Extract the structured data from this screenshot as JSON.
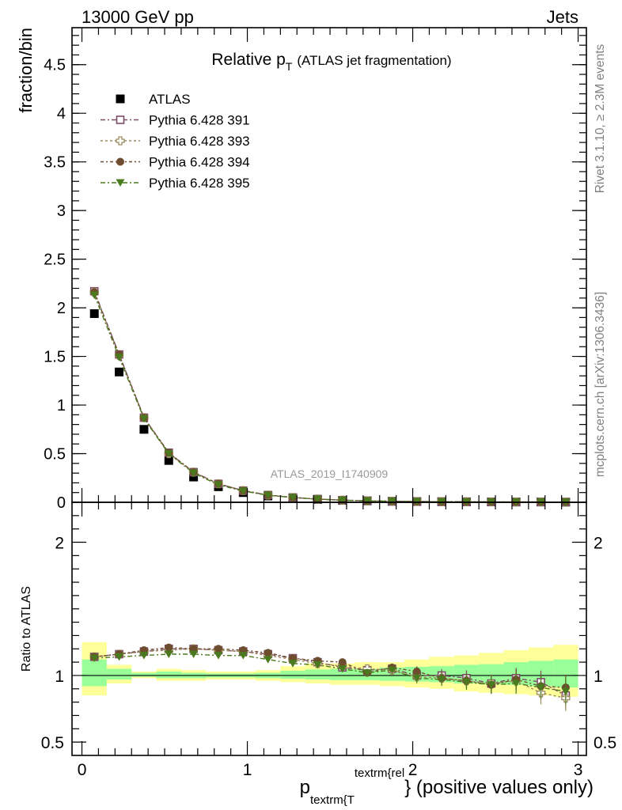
{
  "header": {
    "left_label": "13000 GeV pp",
    "right_label": "Jets",
    "side_label_top": "Rivet 3.1.10, ≥ 2.3M events",
    "side_label_bottom": "mcplots.cern.ch [arXiv:1306.3436]",
    "watermark": "ATLAS_2019_I1740909"
  },
  "chart_data": [
    {
      "type": "scatter",
      "panel": "main",
      "title_main": "Relative p",
      "title_sub": "T",
      "title_rest": "(ATLAS jet fragmentation)",
      "ylabel": "fraction/bin",
      "xlim": [
        -0.06,
        3.05
      ],
      "ylim": [
        0,
        4.88
      ],
      "yticks": [
        "0",
        "0.5",
        "1",
        "1.5",
        "2",
        "2.5",
        "3",
        "3.5",
        "4",
        "4.5"
      ],
      "x": [
        0.075,
        0.225,
        0.375,
        0.525,
        0.675,
        0.825,
        0.975,
        1.125,
        1.275,
        1.425,
        1.575,
        1.725,
        1.875,
        2.025,
        2.175,
        2.325,
        2.475,
        2.625,
        2.775,
        2.925
      ],
      "series": [
        {
          "name": "ATLAS",
          "color": "#000000",
          "marker": "square-filled",
          "values": [
            1.94,
            1.34,
            0.75,
            0.43,
            0.26,
            0.16,
            0.1,
            0.065,
            0.045,
            0.03,
            0.02,
            0.015,
            0.01,
            0.008,
            0.006,
            0.005,
            0.004,
            0.003,
            0.003,
            0.002
          ]
        },
        {
          "name": "Pythia 6.428 391",
          "color": "#7b4b68",
          "marker": "square-open",
          "dash": "6,3,2,3",
          "values": [
            2.17,
            1.52,
            0.87,
            0.51,
            0.31,
            0.19,
            0.12,
            0.075,
            0.05,
            0.033,
            0.022,
            0.016,
            0.011,
            0.009,
            0.006,
            0.005,
            0.004,
            0.003,
            0.003,
            0.002
          ]
        },
        {
          "name": "Pythia 6.428 393",
          "color": "#9c8a5c",
          "marker": "cross-open",
          "dash": "3,3",
          "values": [
            2.16,
            1.51,
            0.87,
            0.5,
            0.31,
            0.19,
            0.12,
            0.074,
            0.049,
            0.033,
            0.022,
            0.015,
            0.011,
            0.008,
            0.006,
            0.005,
            0.004,
            0.003,
            0.003,
            0.002
          ]
        },
        {
          "name": "Pythia 6.428 394",
          "color": "#6e4c2e",
          "marker": "circle-filled",
          "dash": "4,3,2,3",
          "values": [
            2.16,
            1.52,
            0.87,
            0.51,
            0.31,
            0.19,
            0.12,
            0.075,
            0.05,
            0.033,
            0.022,
            0.015,
            0.011,
            0.008,
            0.006,
            0.005,
            0.004,
            0.003,
            0.003,
            0.002
          ]
        },
        {
          "name": "Pythia 6.428 395",
          "color": "#4a7a1e",
          "marker": "triangle-down-filled",
          "dash": "6,3,2,3",
          "values": [
            2.13,
            1.49,
            0.86,
            0.5,
            0.3,
            0.18,
            0.115,
            0.072,
            0.048,
            0.032,
            0.021,
            0.015,
            0.011,
            0.008,
            0.006,
            0.005,
            0.004,
            0.003,
            0.003,
            0.002
          ]
        }
      ]
    },
    {
      "type": "scatter",
      "panel": "ratio",
      "ylabel": "Ratio to ATLAS",
      "xlabel_main": "p",
      "xlabel_sub": "textrm{T",
      "xlabel_sup": "textrm{rel",
      "xlabel_rest": "} (positive values only)",
      "xlim": [
        -0.06,
        3.05
      ],
      "ylim": [
        0.4,
        2.3
      ],
      "xticks": [
        "0",
        "1",
        "2",
        "3"
      ],
      "yticks": [
        "0.5",
        "1",
        "2"
      ],
      "band_edges": [
        0,
        0.15,
        0.3,
        0.45,
        0.6,
        0.75,
        0.9,
        1.05,
        1.2,
        1.35,
        1.5,
        1.65,
        1.8,
        1.95,
        2.1,
        2.25,
        2.4,
        2.55,
        2.7,
        2.85,
        3.0
      ],
      "band_yellow": [
        [
          0.85,
          1.25
        ],
        [
          0.94,
          1.08
        ],
        [
          0.98,
          1.03
        ],
        [
          0.96,
          1.05
        ],
        [
          0.96,
          1.04
        ],
        [
          0.97,
          1.03
        ],
        [
          0.97,
          1.03
        ],
        [
          0.96,
          1.04
        ],
        [
          0.95,
          1.07
        ],
        [
          0.94,
          1.09
        ],
        [
          0.93,
          1.09
        ],
        [
          0.93,
          1.1
        ],
        [
          0.92,
          1.1
        ],
        [
          0.91,
          1.12
        ],
        [
          0.9,
          1.14
        ],
        [
          0.88,
          1.15
        ],
        [
          0.87,
          1.17
        ],
        [
          0.86,
          1.19
        ],
        [
          0.85,
          1.21
        ],
        [
          0.84,
          1.23
        ]
      ],
      "band_green": [
        [
          0.92,
          1.12
        ],
        [
          0.97,
          1.05
        ],
        [
          0.99,
          1.02
        ],
        [
          0.98,
          1.03
        ],
        [
          0.98,
          1.02
        ],
        [
          0.985,
          1.015
        ],
        [
          0.985,
          1.015
        ],
        [
          0.98,
          1.02
        ],
        [
          0.975,
          1.035
        ],
        [
          0.97,
          1.045
        ],
        [
          0.965,
          1.05
        ],
        [
          0.965,
          1.05
        ],
        [
          0.96,
          1.06
        ],
        [
          0.955,
          1.065
        ],
        [
          0.95,
          1.07
        ],
        [
          0.94,
          1.08
        ],
        [
          0.935,
          1.085
        ],
        [
          0.93,
          1.1
        ],
        [
          0.92,
          1.11
        ],
        [
          0.91,
          1.12
        ]
      ],
      "series": [
        {
          "name": "Pythia 6.428 391",
          "values": [
            1.14,
            1.16,
            1.18,
            1.2,
            1.2,
            1.19,
            1.18,
            1.16,
            1.13,
            1.1,
            1.06,
            1.04,
            1.05,
            1.0,
            1.0,
            0.98,
            0.94,
            0.98,
            0.95,
            0.85
          ]
        },
        {
          "name": "Pythia 6.428 393",
          "values": [
            1.14,
            1.16,
            1.18,
            1.19,
            1.2,
            1.19,
            1.18,
            1.15,
            1.12,
            1.09,
            1.07,
            1.05,
            1.04,
            0.99,
            0.98,
            0.96,
            0.94,
            0.96,
            0.87,
            0.83
          ]
        },
        {
          "name": "Pythia 6.428 394",
          "values": [
            1.14,
            1.16,
            1.19,
            1.21,
            1.2,
            1.2,
            1.19,
            1.17,
            1.13,
            1.11,
            1.1,
            1.02,
            1.06,
            1.03,
            0.98,
            0.96,
            0.93,
            0.97,
            0.92,
            0.91
          ]
        },
        {
          "name": "Pythia 6.428 395",
          "values": [
            1.13,
            1.14,
            1.15,
            1.16,
            1.16,
            1.15,
            1.15,
            1.12,
            1.09,
            1.08,
            1.05,
            1.02,
            1.04,
            0.98,
            0.97,
            0.95,
            0.93,
            0.94,
            0.91,
            0.88
          ]
        }
      ]
    }
  ]
}
